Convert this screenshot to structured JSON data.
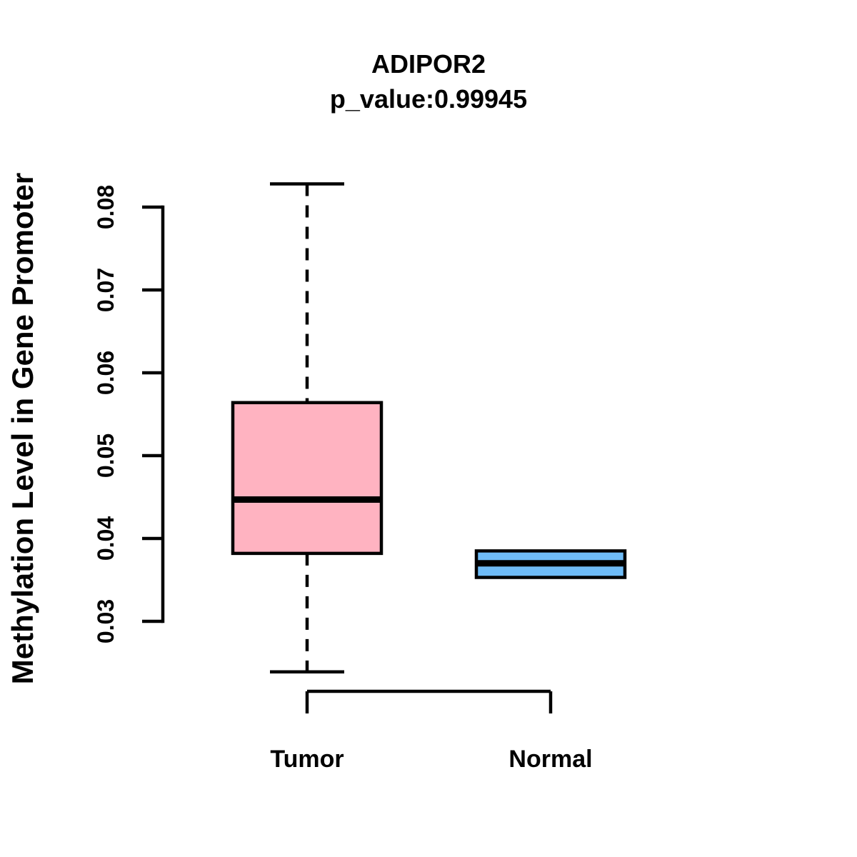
{
  "chart_data": {
    "type": "boxplot",
    "title": "ADIPOR2",
    "subtitle": "p_value:0.99945",
    "ylabel": "Methylation Level in Gene Promoter",
    "xlabel": "",
    "categories": [
      "Tumor",
      "Normal"
    ],
    "axis_range": [
      0.03,
      0.08
    ],
    "yticks": [
      0.03,
      0.04,
      0.05,
      0.06,
      0.07,
      0.08
    ],
    "ytick_labels": [
      "0.03",
      "0.04",
      "0.05",
      "0.06",
      "0.07",
      "0.08"
    ],
    "grid": false,
    "legend_position": "none",
    "stroke_color": "#000000",
    "series": [
      {
        "name": "Tumor",
        "fill_color": "#FFB3C1",
        "lower_whisker": 0.0239,
        "q1": 0.0382,
        "median": 0.0447,
        "q3": 0.0564,
        "upper_whisker": 0.0828,
        "show_whiskers": true
      },
      {
        "name": "Normal",
        "fill_color": "#6FBCF7",
        "lower_whisker": 0.0353,
        "q1": 0.0353,
        "median": 0.037,
        "q3": 0.0385,
        "upper_whisker": 0.0385,
        "show_whiskers": false
      }
    ]
  }
}
